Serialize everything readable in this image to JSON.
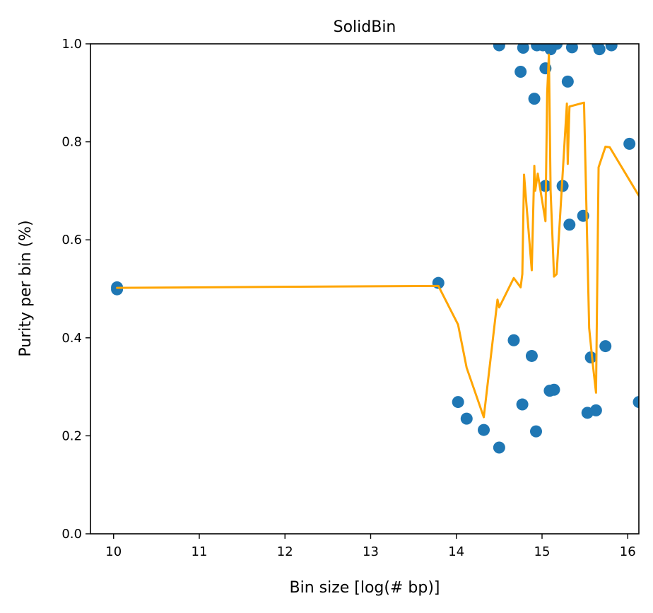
{
  "chart_data": {
    "type": "scatter",
    "title": "SolidBin",
    "xlabel": "Bin size [log(# bp)]",
    "ylabel": "Purity per bin (%)",
    "xlim": [
      9.73,
      16.13
    ],
    "ylim": [
      0.0,
      1.0
    ],
    "xticks": [
      10,
      11,
      12,
      13,
      14,
      15,
      16
    ],
    "xtick_labels": [
      "10",
      "11",
      "12",
      "13",
      "14",
      "15",
      "16"
    ],
    "yticks": [
      0.0,
      0.2,
      0.4,
      0.6,
      0.8,
      1.0
    ],
    "ytick_labels": [
      "0.0",
      "0.2",
      "0.4",
      "0.6",
      "0.8",
      "1.0"
    ],
    "grid": false,
    "colors": {
      "points": "#1f77b4",
      "line": "#ffa500"
    },
    "series": [
      {
        "type": "scatter",
        "points": [
          [
            10.04,
            0.503
          ],
          [
            10.04,
            0.499
          ],
          [
            13.79,
            0.512
          ],
          [
            14.02,
            0.269
          ],
          [
            14.12,
            0.235
          ],
          [
            14.32,
            0.212
          ],
          [
            14.5,
            0.176
          ],
          [
            14.5,
            0.997
          ],
          [
            14.67,
            0.395
          ],
          [
            14.75,
            0.943
          ],
          [
            14.77,
            0.264
          ],
          [
            14.78,
            0.992
          ],
          [
            14.88,
            0.363
          ],
          [
            14.91,
            0.888
          ],
          [
            14.93,
            0.209
          ],
          [
            14.94,
            0.997
          ],
          [
            15.01,
            0.997
          ],
          [
            15.04,
            0.71
          ],
          [
            15.04,
            0.95
          ],
          [
            15.09,
            0.292
          ],
          [
            15.1,
            0.989
          ],
          [
            15.14,
            0.294
          ],
          [
            15.17,
            1.0
          ],
          [
            15.24,
            0.71
          ],
          [
            15.3,
            0.923
          ],
          [
            15.32,
            0.631
          ],
          [
            15.35,
            0.993
          ],
          [
            15.48,
            0.649
          ],
          [
            15.53,
            0.247
          ],
          [
            15.57,
            0.36
          ],
          [
            15.63,
            0.252
          ],
          [
            15.65,
            0.999
          ],
          [
            15.67,
            0.989
          ],
          [
            15.74,
            0.383
          ],
          [
            15.81,
            0.997
          ],
          [
            16.02,
            0.796
          ],
          [
            16.13,
            0.269
          ]
        ]
      },
      {
        "type": "line",
        "points": [
          [
            10.04,
            0.502
          ],
          [
            13.79,
            0.506
          ],
          [
            14.02,
            0.427
          ],
          [
            14.12,
            0.339
          ],
          [
            14.32,
            0.238
          ],
          [
            14.48,
            0.478
          ],
          [
            14.5,
            0.462
          ],
          [
            14.67,
            0.522
          ],
          [
            14.75,
            0.503
          ],
          [
            14.77,
            0.53
          ],
          [
            14.79,
            0.733
          ],
          [
            14.88,
            0.538
          ],
          [
            14.91,
            0.751
          ],
          [
            14.92,
            0.7
          ],
          [
            14.95,
            0.735
          ],
          [
            15.04,
            0.638
          ],
          [
            15.06,
            0.9
          ],
          [
            15.08,
            0.978
          ],
          [
            15.1,
            0.7
          ],
          [
            15.14,
            0.525
          ],
          [
            15.17,
            0.53
          ],
          [
            15.29,
            0.878
          ],
          [
            15.3,
            0.755
          ],
          [
            15.32,
            0.872
          ],
          [
            15.49,
            0.88
          ],
          [
            15.55,
            0.42
          ],
          [
            15.59,
            0.35
          ],
          [
            15.63,
            0.288
          ],
          [
            15.66,
            0.748
          ],
          [
            15.74,
            0.79
          ],
          [
            15.79,
            0.789
          ],
          [
            16.13,
            0.69
          ]
        ]
      }
    ]
  }
}
